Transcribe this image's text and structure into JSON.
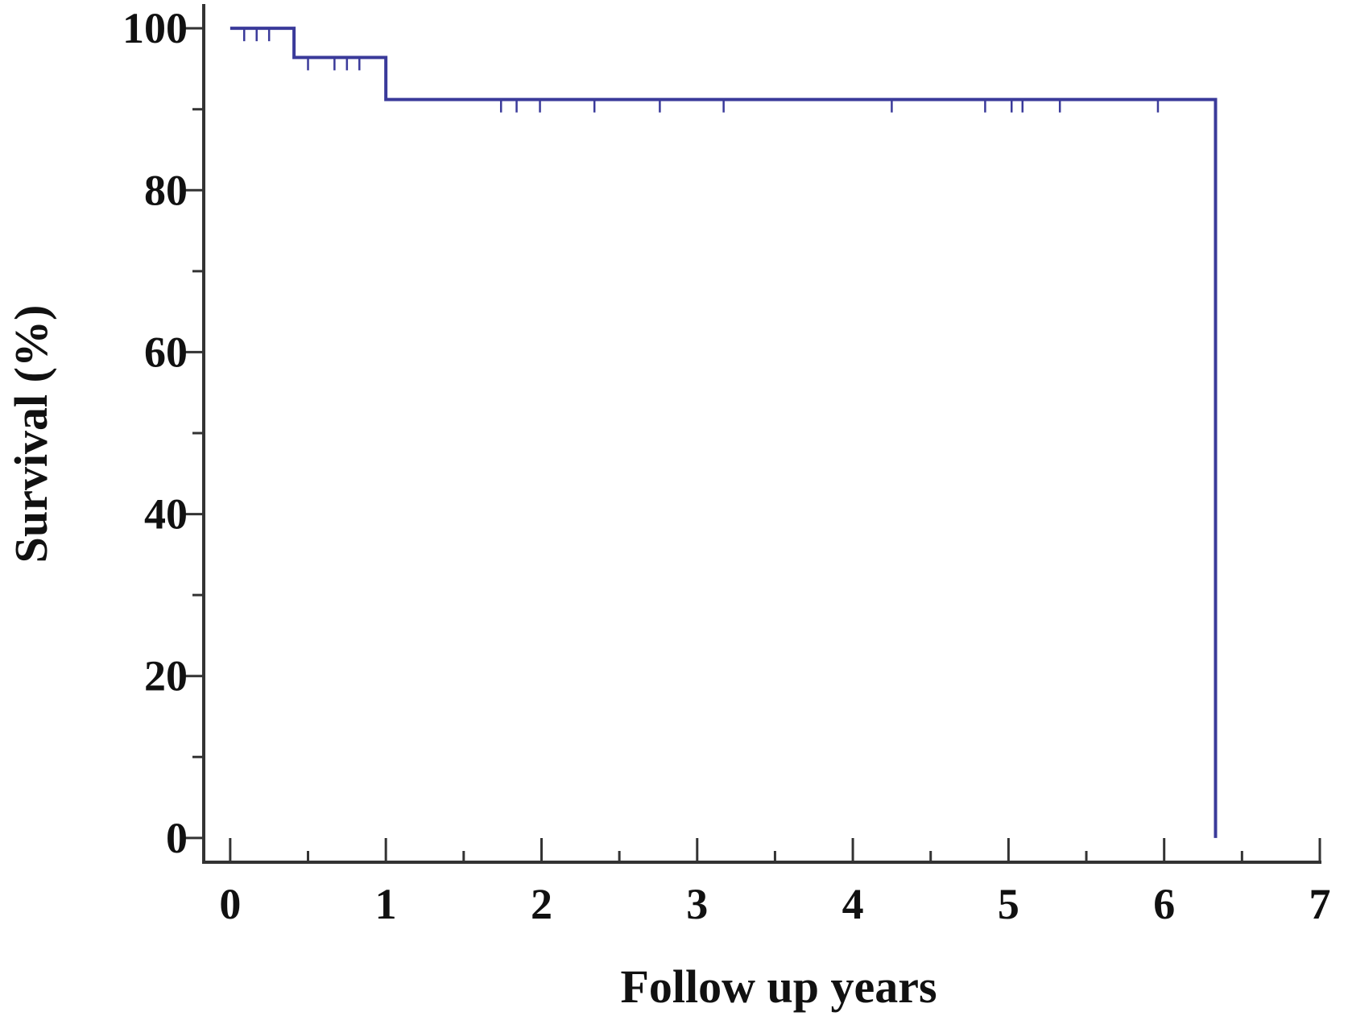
{
  "chart_data": {
    "type": "line",
    "step": true,
    "x_label": "Follow up years",
    "y_label": "Survival (%)",
    "xlim": [
      -0.17,
      7
    ],
    "ylim": [
      -3,
      103
    ],
    "xticks": [
      0,
      1,
      2,
      3,
      4,
      5,
      6,
      7
    ],
    "xminor": [
      0.5,
      1.5,
      2.5,
      3.5,
      4.5,
      5.5,
      6.5
    ],
    "yticks": [
      0,
      20,
      40,
      60,
      80,
      100
    ],
    "yminor": [
      10,
      30,
      50,
      70,
      90
    ],
    "color": "#3a3a9a",
    "axis_color": "#333333",
    "x": [
      0,
      0.41,
      0.41,
      1,
      1,
      6.33,
      6.33
    ],
    "values": [
      100,
      100,
      96.4,
      96.4,
      91.2,
      91.2,
      0
    ],
    "censored": {
      "x": [
        0.09,
        0.17,
        0.25,
        0.5,
        0.67,
        0.75,
        0.83,
        1.74,
        1.84,
        1.99,
        2.34,
        2.76,
        3.17,
        4.25,
        4.85,
        5.02,
        5.09,
        5.33,
        5.96
      ],
      "values": [
        100,
        100,
        100,
        96.4,
        96.4,
        96.4,
        96.4,
        91.2,
        91.2,
        91.2,
        91.2,
        91.2,
        91.2,
        91.2,
        91.2,
        91.2,
        91.2,
        91.2,
        91.2
      ]
    }
  }
}
